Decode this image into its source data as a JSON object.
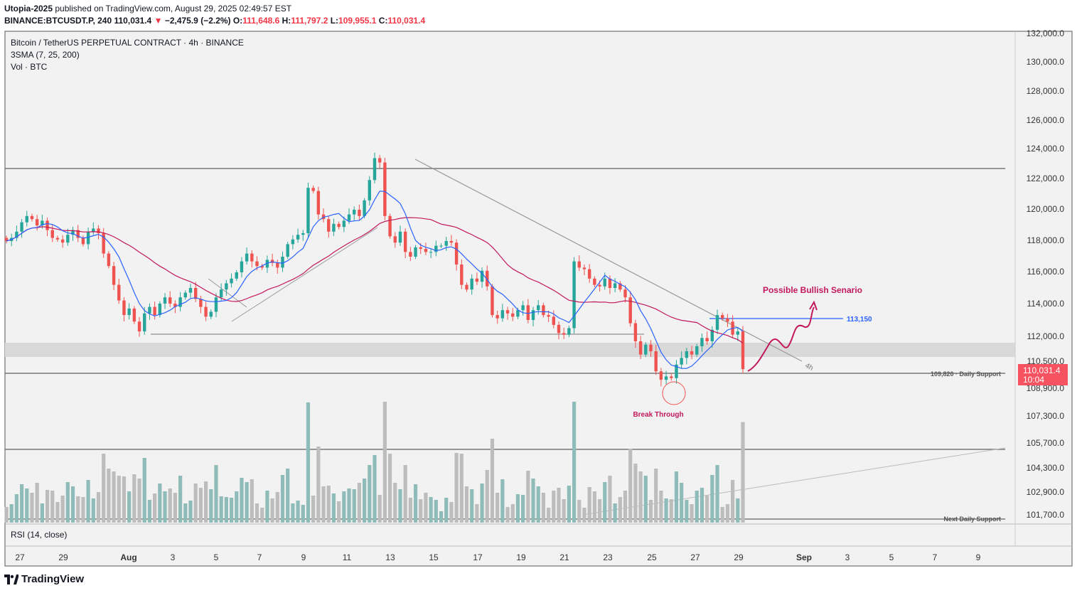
{
  "header": {
    "author": "Utopia-2025",
    "published": "published on TradingView.com, August 29, 2025 02:49:57 EST",
    "symbol": "BINANCE:BTCUSDT.P, 240",
    "last": "110,031.4",
    "change": "−2,475.9 (−2.2%)",
    "o_label": "O:",
    "o": "111,648.6",
    "h_label": "H:",
    "h": "111,797.2",
    "l_label": "L:",
    "l": "109,955.1",
    "c_label": "C:",
    "c": "110,031.4"
  },
  "legend": {
    "title": "Bitcoin / TetherUS PERPETUAL CONTRACT · 4h · BINANCE",
    "sma": "3SMA (7, 25, 200)",
    "vol": "Vol · BTC",
    "rsi": "RSI (14, close)"
  },
  "footer": {
    "brand": "TradingView"
  },
  "colors": {
    "up": "#26a69a",
    "down": "#ef5350",
    "sma_fast": "#2962ff",
    "sma_slow": "#c2185b",
    "annotation": "#c2185b",
    "price_tag": "#f7525f"
  },
  "chart_data": {
    "type": "candlestick",
    "timeframe": "4h",
    "ylim": [
      100800,
      132500
    ],
    "x_ticks": [
      "27",
      "29",
      "Aug",
      "3",
      "5",
      "7",
      "9",
      "11",
      "13",
      "15",
      "17",
      "19",
      "21",
      "23",
      "25",
      "27",
      "29",
      "Sep",
      "3",
      "5",
      "7",
      "9"
    ],
    "y_ticks": [
      "132,000.0",
      "130,000.0",
      "128,000.0",
      "126,000.0",
      "124,000.0",
      "122,000.0",
      "120,000.0",
      "118,000.0",
      "116,000.0",
      "114,000.0",
      "112,000.0",
      "110,500.0",
      "108,900.0",
      "107,300.0",
      "105,700.0",
      "104,300.0",
      "102,900.0",
      "101,700.0"
    ],
    "price_tag": {
      "value": "110,031.4",
      "countdown": "10:04"
    },
    "levels": [
      {
        "label": "109,820 · Daily Support",
        "value": 109820
      },
      {
        "label": "Next Daily Support",
        "value": 101700
      },
      {
        "label": "113,150",
        "value": 113150
      }
    ],
    "annotations": {
      "bullish": "Possible Bullish Senario",
      "break": "Break Through",
      "tf": "4h"
    },
    "closes": [
      118000,
      118200,
      118600,
      119200,
      119600,
      119400,
      119000,
      119300,
      118700,
      118200,
      118100,
      117900,
      118400,
      118700,
      118200,
      117800,
      118600,
      118800,
      118500,
      117200,
      116400,
      115200,
      114200,
      113300,
      113700,
      112900,
      112300,
      113400,
      113800,
      113300,
      114000,
      114400,
      114000,
      113800,
      114400,
      114700,
      115000,
      114300,
      113800,
      113200,
      113500,
      114400,
      114900,
      115300,
      115600,
      116000,
      116700,
      117200,
      116700,
      116400,
      116300,
      116800,
      116600,
      116300,
      117000,
      117800,
      118100,
      118400,
      118500,
      121400,
      121200,
      119700,
      119400,
      118600,
      119100,
      118900,
      119300,
      119700,
      120000,
      119600,
      120600,
      121900,
      123400,
      123100,
      119600,
      118300,
      117900,
      118600,
      117300,
      117000,
      117600,
      117500,
      117300,
      117300,
      117700,
      117700,
      118000,
      117900,
      116500,
      115200,
      114900,
      115600,
      115400,
      116100,
      115100,
      113300,
      113100,
      113600,
      113400,
      113200,
      113600,
      113900,
      113000,
      113600,
      113900,
      113300,
      113200,
      112700,
      112200,
      112100,
      112500,
      116700,
      116300,
      116200,
      115600,
      115200,
      115100,
      115600,
      115000,
      115300,
      114900,
      114400,
      112800,
      111700,
      110900,
      111500,
      111100,
      109900,
      109400,
      109600,
      109500,
      110300,
      110700,
      111100,
      110900,
      111400,
      111900,
      111700,
      112400,
      113300,
      113100,
      112900,
      112100,
      112300,
      110031
    ]
  }
}
